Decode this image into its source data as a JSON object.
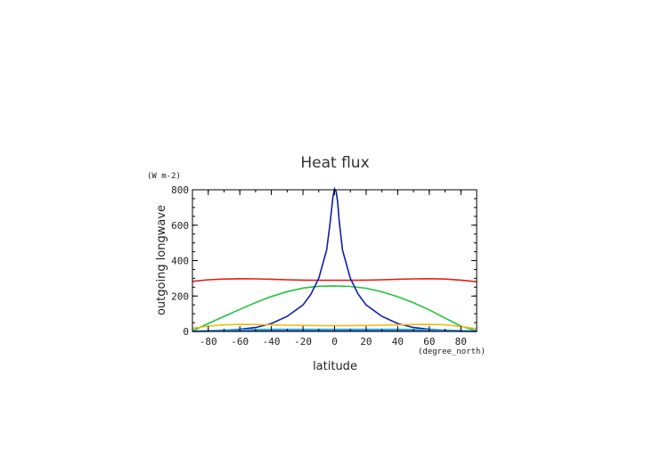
{
  "chart_data": {
    "type": "line",
    "title": "Heat flux",
    "xlabel": "latitude",
    "ylabel": "outgoing longwave",
    "xunit": "(degree_north)",
    "yunit": "(W m-2)",
    "xlim": [
      -90,
      90
    ],
    "ylim": [
      0,
      800
    ],
    "xticks": [
      -80,
      -60,
      -40,
      -20,
      0,
      20,
      40,
      60,
      80
    ],
    "yticks": [
      0,
      200,
      400,
      600,
      800
    ],
    "grid": false,
    "series": [
      {
        "color": "#e0201c",
        "x": [
          -90,
          -80,
          -70,
          -60,
          -50,
          -40,
          -30,
          -20,
          -10,
          0,
          10,
          20,
          30,
          40,
          50,
          60,
          70,
          80,
          90
        ],
        "y": [
          283,
          292,
          296,
          298,
          297,
          295,
          292,
          290,
          289,
          289,
          289,
          290,
          292,
          295,
          297,
          298,
          296,
          290,
          281
        ]
      },
      {
        "color": "#1fc43a",
        "x": [
          -90,
          -80,
          -70,
          -60,
          -50,
          -40,
          -30,
          -20,
          -10,
          0,
          10,
          20,
          30,
          40,
          50,
          60,
          70,
          80,
          90
        ],
        "y": [
          3,
          45,
          85,
          125,
          163,
          197,
          225,
          245,
          255,
          257,
          254,
          244,
          224,
          196,
          162,
          122,
          75,
          30,
          3
        ]
      },
      {
        "color": "#111ea8",
        "x": [
          -90,
          -80,
          -70,
          -60,
          -50,
          -40,
          -30,
          -20,
          -15,
          -10,
          -5,
          -3,
          -2,
          -1,
          0,
          1,
          2,
          3,
          5,
          10,
          15,
          20,
          30,
          40,
          50,
          60,
          70,
          80,
          90
        ],
        "y": [
          0,
          3,
          7,
          12,
          22,
          45,
          85,
          150,
          210,
          300,
          460,
          600,
          680,
          760,
          805,
          790,
          730,
          620,
          460,
          300,
          210,
          150,
          85,
          45,
          22,
          12,
          7,
          3,
          0
        ]
      },
      {
        "color": "#f2b81a",
        "x": [
          -90,
          -80,
          -70,
          -60,
          -50,
          -40,
          -30,
          -20,
          -10,
          0,
          10,
          20,
          30,
          40,
          50,
          60,
          70,
          80,
          90
        ],
        "y": [
          18,
          30,
          37,
          40,
          39,
          37,
          35,
          34,
          33,
          33,
          33,
          34,
          35,
          37,
          39,
          40,
          37,
          28,
          15
        ]
      },
      {
        "color": "#27b8e0",
        "x": [
          -90,
          -80,
          -70,
          -60,
          -50,
          -40,
          -30,
          -20,
          -10,
          0,
          10,
          20,
          30,
          40,
          50,
          60,
          70,
          80,
          90
        ],
        "y": [
          2,
          5,
          8,
          10,
          11,
          12,
          12,
          12,
          12,
          12,
          12,
          12,
          12,
          12,
          11,
          10,
          8,
          5,
          2
        ]
      },
      {
        "color": "#2a56d8",
        "x": [
          -90,
          -80,
          -70,
          -60,
          -50,
          -40,
          -30,
          -20,
          -10,
          0,
          10,
          20,
          30,
          40,
          50,
          60,
          70,
          80,
          90
        ],
        "y": [
          0,
          1,
          2,
          3,
          3,
          4,
          4,
          4,
          4,
          4,
          4,
          4,
          4,
          4,
          3,
          3,
          2,
          1,
          0
        ]
      }
    ]
  }
}
